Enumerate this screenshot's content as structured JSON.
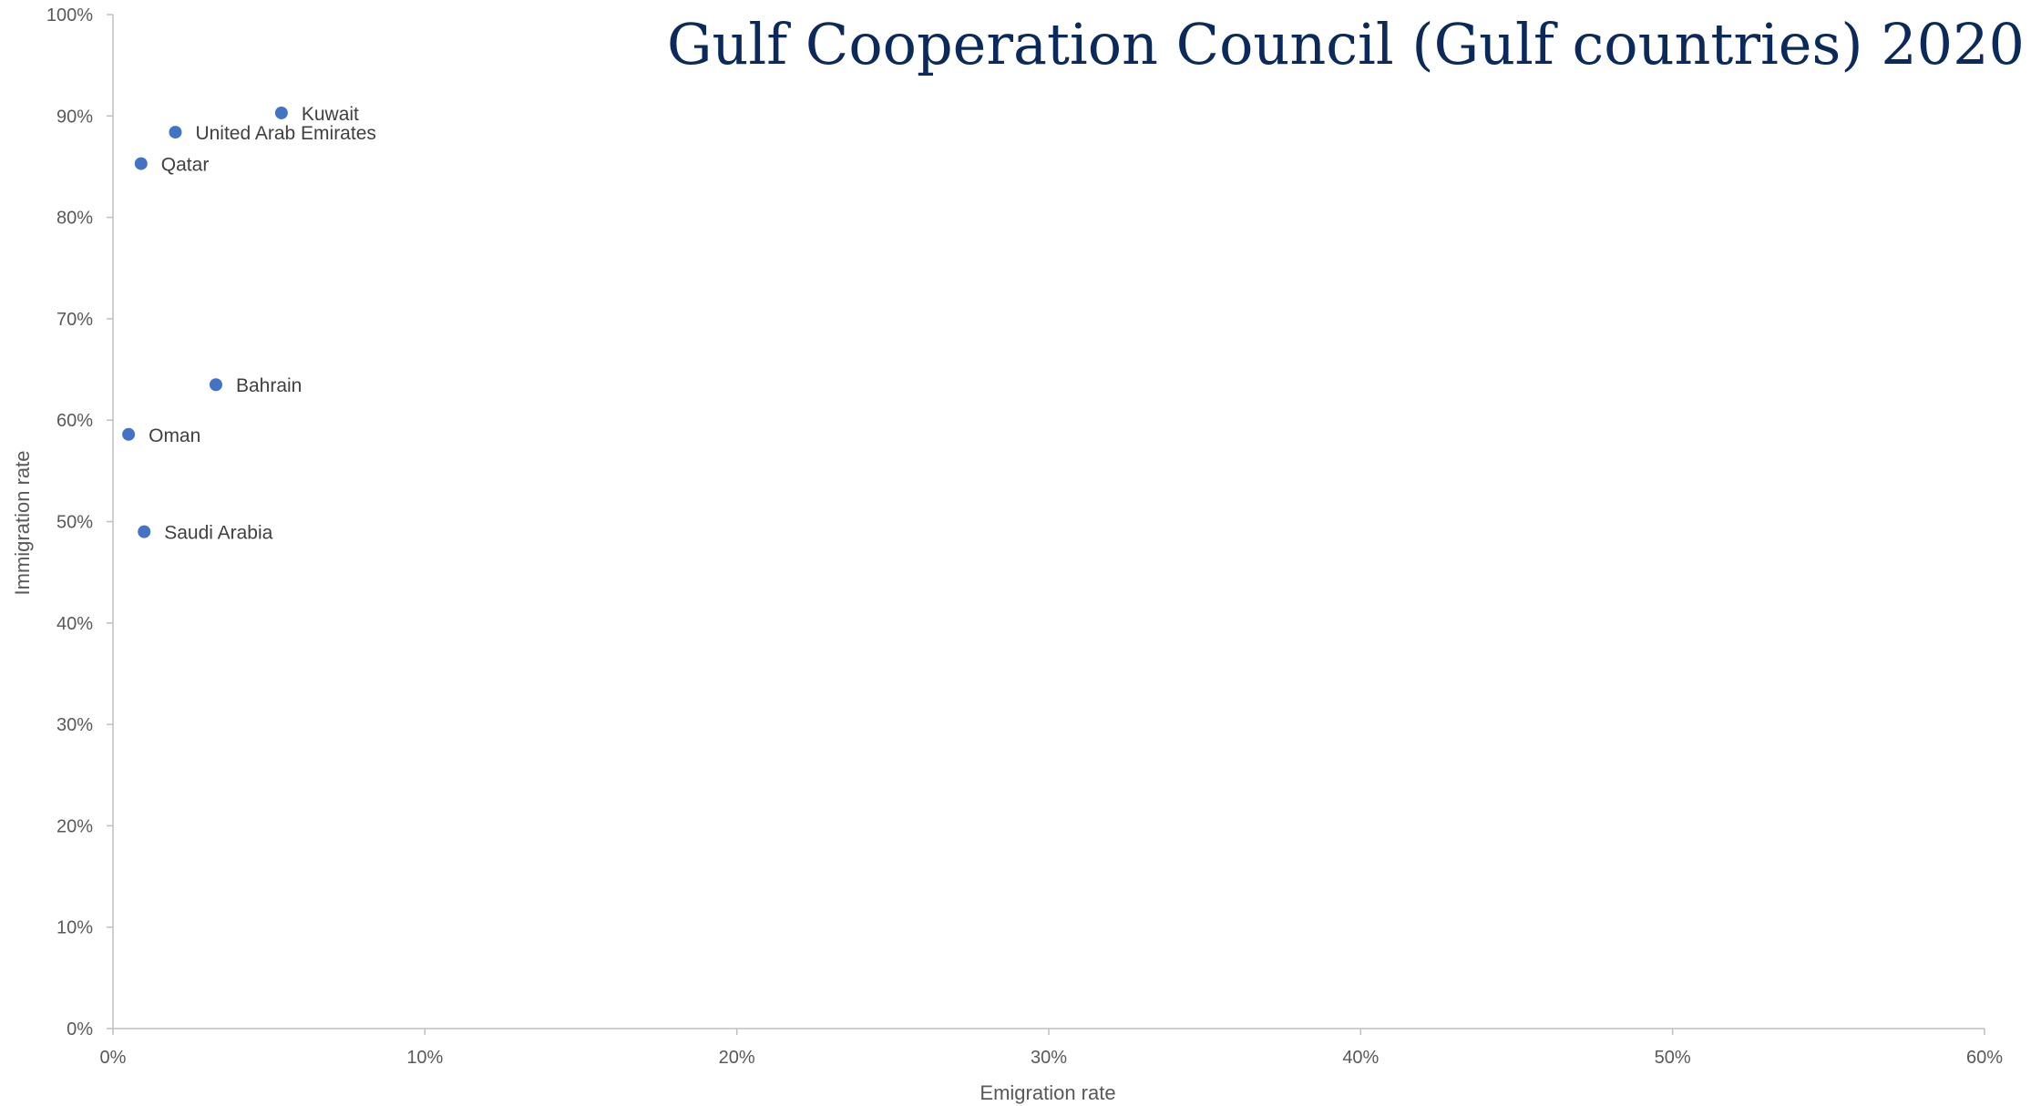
{
  "chart_data": {
    "type": "scatter",
    "title": "Gulf Cooperation Council (Gulf countries) 2020",
    "xlabel": "Emigration rate",
    "ylabel": "Immigration rate",
    "xlim": [
      0,
      0.6
    ],
    "ylim": [
      0,
      1.0
    ],
    "x_ticks": [
      0,
      0.1,
      0.2,
      0.3,
      0.4,
      0.5,
      0.6
    ],
    "x_tick_labels": [
      "0%",
      "10%",
      "20%",
      "30%",
      "40%",
      "50%",
      "60%"
    ],
    "y_ticks": [
      0,
      0.1,
      0.2,
      0.3,
      0.4,
      0.5,
      0.6,
      0.7,
      0.8,
      0.9,
      1.0
    ],
    "y_tick_labels": [
      "0%",
      "10%",
      "20%",
      "30%",
      "40%",
      "50%",
      "60%",
      "70%",
      "80%",
      "90%",
      "100%"
    ],
    "grid": false,
    "marker_color": "#4472c4",
    "title_color": "#0b2a5b",
    "points": [
      {
        "label": "Kuwait",
        "x": 0.054,
        "y": 0.903
      },
      {
        "label": "United Arab Emirates",
        "x": 0.02,
        "y": 0.884
      },
      {
        "label": "Qatar",
        "x": 0.009,
        "y": 0.853
      },
      {
        "label": "Bahrain",
        "x": 0.033,
        "y": 0.635
      },
      {
        "label": "Oman",
        "x": 0.005,
        "y": 0.586
      },
      {
        "label": "Saudi Arabia",
        "x": 0.01,
        "y": 0.49
      }
    ]
  }
}
